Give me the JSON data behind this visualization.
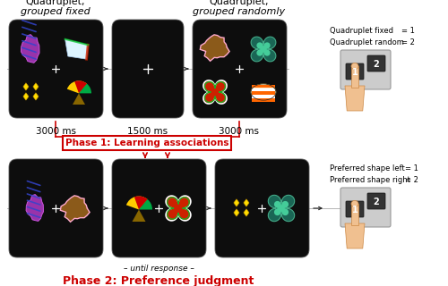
{
  "bg_color": "#ffffff",
  "screen_color": "#0c0c0c",
  "top_labels_left": [
    "Quadruplet,",
    "grouped fixed"
  ],
  "top_labels_right": [
    "Quadruplet,",
    "grouped randomly"
  ],
  "time_labels": [
    "3000 ms",
    "1500 ms",
    "3000 ms"
  ],
  "phase1_label": "Phase 1: Learning associations",
  "phase1_color": "#cc0000",
  "phase2_label": "Phase 2: Preference judgment",
  "phase2_color": "#cc0000",
  "until_response": "– until response –",
  "right_top_line1": "Quadruplet fixed",
  "right_top_line2": "Quadruplet random",
  "right_top_eq1": "= 1",
  "right_top_eq2": "= 2",
  "right_bot_line1": "Preferred shape left",
  "right_bot_line2": "Preferred shape right",
  "right_bot_eq1": "= 1",
  "right_bot_eq2": "= 2",
  "arrow_black": "#222222",
  "arrow_red": "#cc0000"
}
